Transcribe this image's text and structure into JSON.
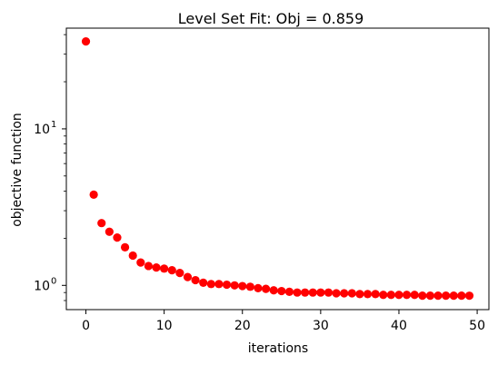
{
  "chart_data": {
    "type": "scatter",
    "title": "Level Set Fit: Obj = 0.859",
    "xlabel": "iterations",
    "ylabel": "objective function",
    "xlim": [
      -2.5,
      51.5
    ],
    "ylim": [
      0.7,
      44
    ],
    "yscale": "log",
    "grid": false,
    "marker_color": "#ff0000",
    "x_ticks": [
      {
        "value": 0,
        "label": "0"
      },
      {
        "value": 10,
        "label": "10"
      },
      {
        "value": 20,
        "label": "20"
      },
      {
        "value": 30,
        "label": "30"
      },
      {
        "value": 40,
        "label": "40"
      },
      {
        "value": 50,
        "label": "50"
      }
    ],
    "y_major_ticks": [
      {
        "value": 1,
        "label": "10",
        "exponent": "0"
      },
      {
        "value": 10,
        "label": "10",
        "exponent": "1"
      }
    ],
    "y_minor_ticks": [
      0.8,
      0.9,
      2,
      3,
      4,
      5,
      6,
      7,
      8,
      9,
      20,
      30,
      40
    ],
    "x": [
      0,
      1,
      2,
      3,
      4,
      5,
      6,
      7,
      8,
      9,
      10,
      11,
      12,
      13,
      14,
      15,
      16,
      17,
      18,
      19,
      20,
      21,
      22,
      23,
      24,
      25,
      26,
      27,
      28,
      29,
      30,
      31,
      32,
      33,
      34,
      35,
      36,
      37,
      38,
      39,
      40,
      41,
      42,
      43,
      44,
      45,
      46,
      47,
      48,
      49
    ],
    "y": [
      36.2,
      3.8,
      2.5,
      2.2,
      2.02,
      1.75,
      1.55,
      1.4,
      1.33,
      1.3,
      1.28,
      1.25,
      1.2,
      1.13,
      1.08,
      1.04,
      1.02,
      1.02,
      1.01,
      1.0,
      0.99,
      0.98,
      0.96,
      0.95,
      0.93,
      0.92,
      0.91,
      0.9,
      0.9,
      0.9,
      0.9,
      0.9,
      0.89,
      0.89,
      0.89,
      0.88,
      0.88,
      0.88,
      0.87,
      0.87,
      0.87,
      0.87,
      0.87,
      0.86,
      0.86,
      0.86,
      0.86,
      0.86,
      0.86,
      0.859
    ]
  }
}
